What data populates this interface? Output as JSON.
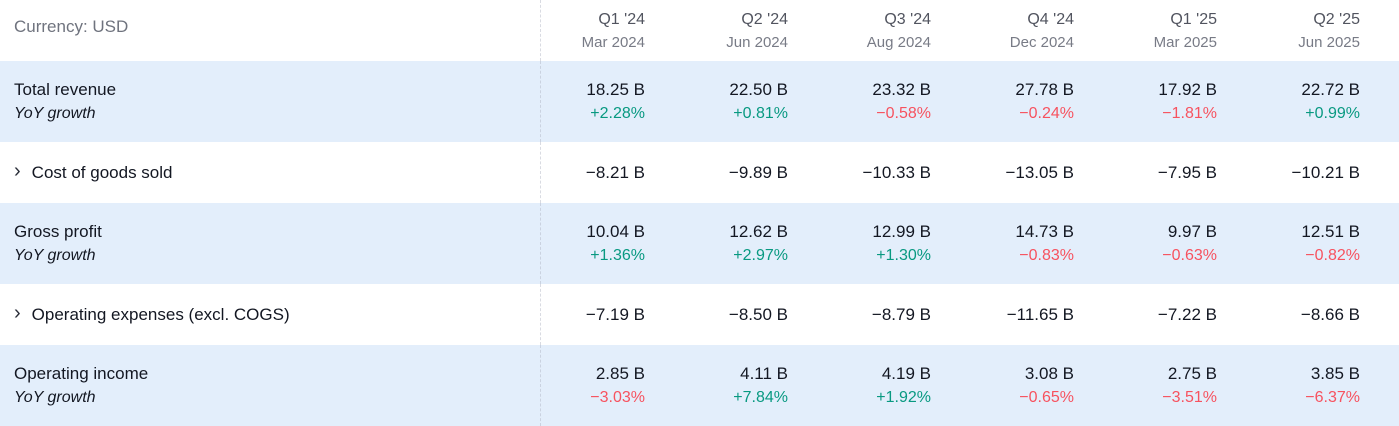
{
  "table": {
    "currency_label": "Currency: USD",
    "colors": {
      "positive": "#089981",
      "negative": "#F7525F",
      "shaded_row_bg": "#E3EEFB",
      "text_primary": "#131722",
      "text_secondary": "#787B86"
    },
    "columns": [
      {
        "quarter": "Q1 '24",
        "date": "Mar 2024"
      },
      {
        "quarter": "Q2 '24",
        "date": "Jun 2024"
      },
      {
        "quarter": "Q3 '24",
        "date": "Aug 2024"
      },
      {
        "quarter": "Q4 '24",
        "date": "Dec 2024"
      },
      {
        "quarter": "Q1 '25",
        "date": "Mar 2025"
      },
      {
        "quarter": "Q2 '25",
        "date": "Jun 2025"
      }
    ],
    "rows": [
      {
        "label": "Total revenue",
        "sub_label": "YoY growth",
        "expandable": false,
        "shaded": true,
        "values": [
          "18.25 B",
          "22.50 B",
          "23.32 B",
          "27.78 B",
          "17.92 B",
          "22.72 B"
        ],
        "growth": [
          "+2.28%",
          "+0.81%",
          "−0.58%",
          "−0.24%",
          "−1.81%",
          "+0.99%"
        ]
      },
      {
        "label": "Cost of goods sold",
        "sub_label": null,
        "expandable": true,
        "shaded": false,
        "values": [
          "−8.21 B",
          "−9.89 B",
          "−10.33 B",
          "−13.05 B",
          "−7.95 B",
          "−10.21 B"
        ],
        "growth": null
      },
      {
        "label": "Gross profit",
        "sub_label": "YoY growth",
        "expandable": false,
        "shaded": true,
        "values": [
          "10.04 B",
          "12.62 B",
          "12.99 B",
          "14.73 B",
          "9.97 B",
          "12.51 B"
        ],
        "growth": [
          "+1.36%",
          "+2.97%",
          "+1.30%",
          "−0.83%",
          "−0.63%",
          "−0.82%"
        ]
      },
      {
        "label": "Operating expenses (excl. COGS)",
        "sub_label": null,
        "expandable": true,
        "shaded": false,
        "values": [
          "−7.19 B",
          "−8.50 B",
          "−8.79 B",
          "−11.65 B",
          "−7.22 B",
          "−8.66 B"
        ],
        "growth": null
      },
      {
        "label": "Operating income",
        "sub_label": "YoY growth",
        "expandable": false,
        "shaded": true,
        "values": [
          "2.85 B",
          "4.11 B",
          "4.19 B",
          "3.08 B",
          "2.75 B",
          "3.85 B"
        ],
        "growth": [
          "−3.03%",
          "+7.84%",
          "+1.92%",
          "−0.65%",
          "−3.51%",
          "−6.37%"
        ]
      }
    ]
  }
}
